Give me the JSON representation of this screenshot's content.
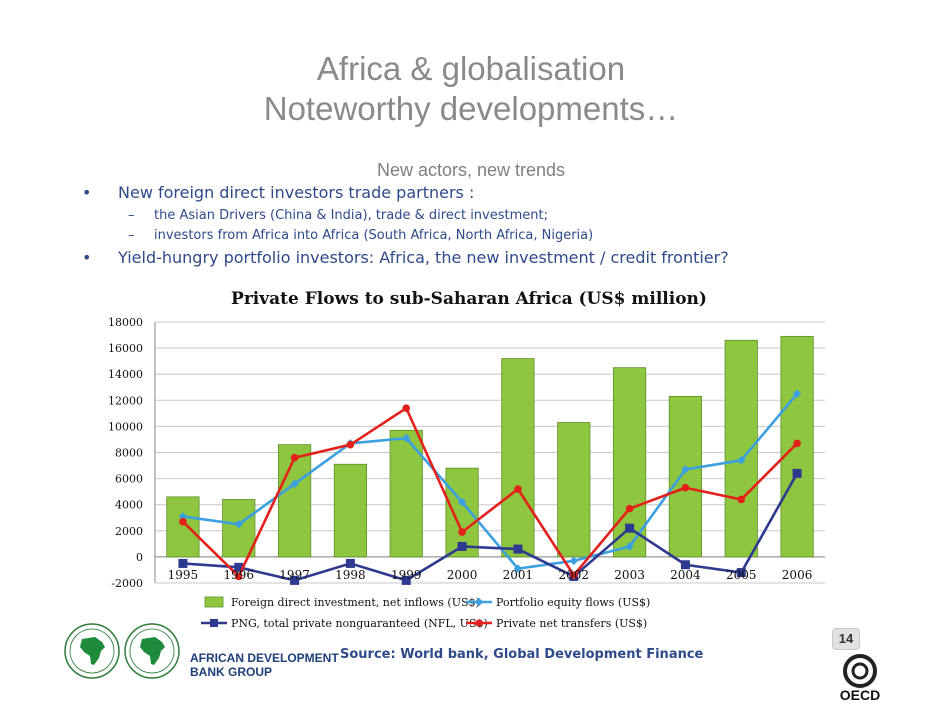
{
  "slide": {
    "title_line1": "Africa & globalisation",
    "title_line2": "Noteworthy developments…",
    "subtitle": "New actors, new trends",
    "bullets": [
      {
        "symbol": "•",
        "text": "New foreign direct investors trade partners :"
      },
      {
        "symbol": "•",
        "text": "Yield-hungry portfolio investors: Africa, the new investment / credit frontier?"
      }
    ],
    "subbullets": [
      {
        "symbol": "–",
        "text": "the Asian Drivers (China & India), trade & direct investment;"
      },
      {
        "symbol": "–",
        "text": "investors from Africa into Africa (South Africa, North Africa, Nigeria)"
      }
    ],
    "source": "Source: World bank, Global Development Finance",
    "org_line1": "AFRICAN DEVELOPMENT",
    "org_line2": "BANK GROUP",
    "page_number": "14",
    "oecd_logo_text": "OECD",
    "colors": {
      "title": "#8a8a8a",
      "bullet_text": "#2f4a8a"
    }
  },
  "chart_data": {
    "type": "bar",
    "title": "Private Flows to sub-Saharan Africa (US$ million)",
    "categories": [
      "1995",
      "1996",
      "1997",
      "1998",
      "1999",
      "2000",
      "2001",
      "2002",
      "2003",
      "2004",
      "2005",
      "2006"
    ],
    "ylim": [
      -2000,
      18000
    ],
    "yticks": [
      "-2000",
      "0",
      "2000",
      "4000",
      "6000",
      "8000",
      "10000",
      "12000",
      "14000",
      "16000",
      "18000"
    ],
    "grid": true,
    "legend_position": "bottom",
    "series": [
      {
        "name": "Foreign direct investment, net inflows (US$)",
        "type": "bar",
        "color": "#8fc63f",
        "values": [
          4600,
          4400,
          8600,
          7100,
          9700,
          6800,
          15200,
          10300,
          14500,
          12300,
          16600,
          16900
        ]
      },
      {
        "name": "Portfolio equity flows (US$)",
        "type": "line",
        "color": "#3aa0e0",
        "values": [
          3100,
          2500,
          5600,
          8700,
          9100,
          4200,
          -900,
          -300,
          800,
          6700,
          7400,
          12500
        ]
      },
      {
        "name": "PNG, total private nonguaranteed (NFL, US$)",
        "type": "line",
        "color": "#2e3a8f",
        "values": [
          -500,
          -800,
          -1800,
          -500,
          -1800,
          800,
          600,
          -1500,
          2200,
          -600,
          -1200,
          6400
        ]
      },
      {
        "name": "Private net transfers (US$)",
        "type": "line",
        "color": "#e3201b",
        "values": [
          2700,
          -1500,
          7600,
          8600,
          11400,
          1900,
          5200,
          -1400,
          3700,
          5300,
          4400,
          8700
        ]
      }
    ]
  }
}
